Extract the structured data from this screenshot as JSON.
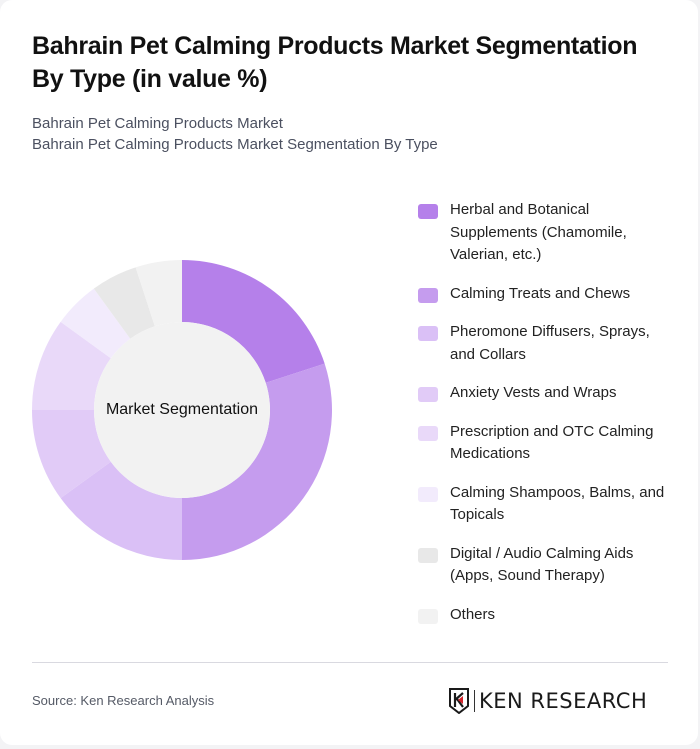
{
  "header": {
    "title": "Bahrain Pet Calming Products Market Segmentation By Type (in value %)",
    "subtitle_line1": "Bahrain Pet Calming Products Market",
    "subtitle_line2": "Bahrain Pet Calming Products Market Segmentation By Type"
  },
  "chart": {
    "center_label": "Market Segmentation"
  },
  "legend": [
    {
      "label": "Herbal and Botanical Supplements (Chamomile, Valerian, etc.)",
      "color": "#b580ea"
    },
    {
      "label": "Calming Treats and Chews",
      "color": "#c59cee"
    },
    {
      "label": "Pheromone Diffusers, Sprays, and Collars",
      "color": "#dac0f6"
    },
    {
      "label": "Anxiety Vests and Wraps",
      "color": "#e1cbf7"
    },
    {
      "label": "Prescription and OTC Calming Medications",
      "color": "#e9d9f9"
    },
    {
      "label": "Calming Shampoos, Balms, and Topicals",
      "color": "#f2ebfc"
    },
    {
      "label": "Digital / Audio Calming Aids (Apps, Sound Therapy)",
      "color": "#e8e8e8"
    },
    {
      "label": "Others",
      "color": "#f2f2f2"
    }
  ],
  "footer": {
    "source": "Source: Ken Research Analysis",
    "logo_text": "KEN RESEARCH"
  },
  "chart_data": {
    "type": "pie",
    "subtype": "donut",
    "title": "Bahrain Pet Calming Products Market Segmentation By Type (in value %)",
    "center_label": "Market Segmentation",
    "categories": [
      "Herbal and Botanical Supplements (Chamomile, Valerian, etc.)",
      "Calming Treats and Chews",
      "Pheromone Diffusers, Sprays, and Collars",
      "Anxiety Vests and Wraps",
      "Prescription and OTC Calming Medications",
      "Calming Shampoos, Balms, and Topicals",
      "Digital / Audio Calming Aids (Apps, Sound Therapy)",
      "Others"
    ],
    "values": [
      20,
      30,
      15,
      10,
      10,
      5,
      5,
      5
    ],
    "colors": [
      "#b580ea",
      "#c59cee",
      "#dac0f6",
      "#e1cbf7",
      "#e9d9f9",
      "#f2ebfc",
      "#e8e8e8",
      "#f2f2f2"
    ],
    "legend_position": "right",
    "unit": "%"
  }
}
